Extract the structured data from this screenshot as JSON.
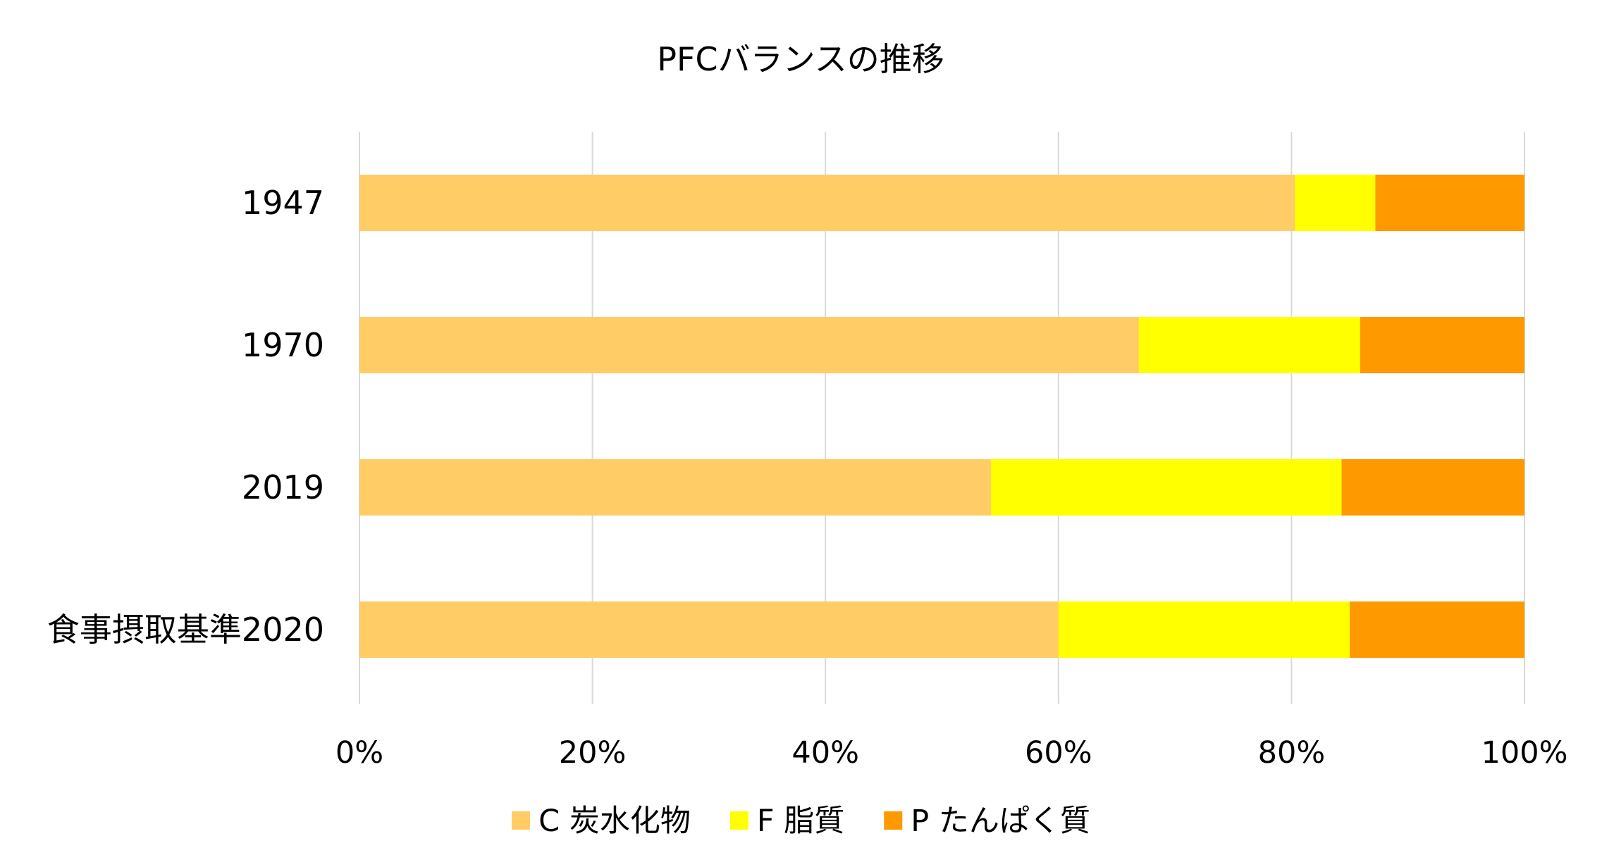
{
  "chart_data": {
    "type": "bar",
    "orientation": "horizontal",
    "stacked": "percent",
    "title": "PFCバランスの推移",
    "categories": [
      "1947",
      "1970",
      "2019",
      "食事摂取基準2020"
    ],
    "series": [
      {
        "name": "C 炭水化物",
        "color": "#FFCC66",
        "values": [
          80.3,
          66.9,
          54.2,
          60.0
        ]
      },
      {
        "name": "F 脂質",
        "color": "#FFFF00",
        "values": [
          6.9,
          19.0,
          30.1,
          25.0
        ]
      },
      {
        "name": "P たんぱく質",
        "color": "#FF9900",
        "values": [
          12.8,
          14.1,
          15.7,
          15.0
        ]
      }
    ],
    "xlim": [
      0,
      100
    ],
    "x_ticks": [
      "0%",
      "20%",
      "40%",
      "60%",
      "80%",
      "100%"
    ],
    "grid": true,
    "legend_position": "bottom"
  }
}
